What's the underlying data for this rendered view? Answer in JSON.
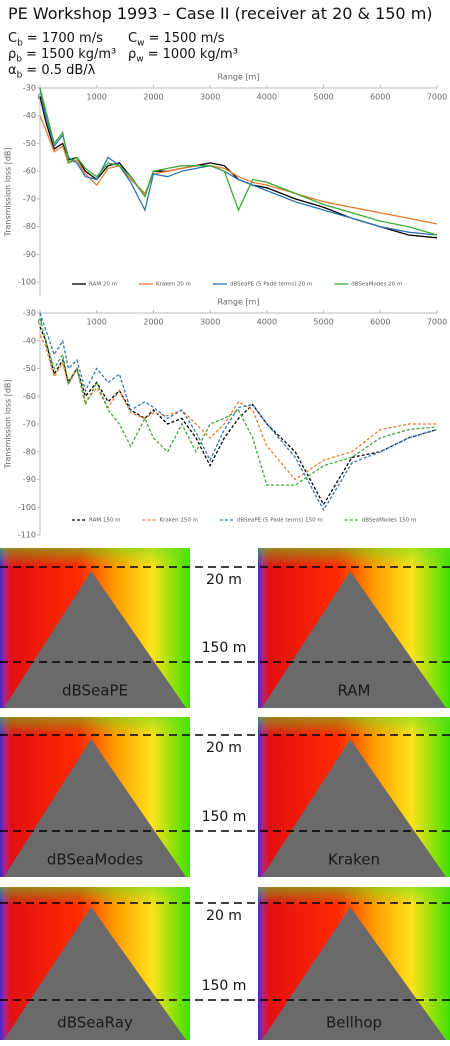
{
  "title": "PE Workshop 1993 – Case II (receiver at 20 & 150 m)",
  "params": [
    {
      "symbol": "C",
      "sub": "b",
      "text": "= 1700 m/s"
    },
    {
      "symbol": "C",
      "sub": "w",
      "text": "= 1500 m/s"
    },
    {
      "symbol": "ρ",
      "sub": "b",
      "text": "= 1500 kg/m³"
    },
    {
      "symbol": "ρ",
      "sub": "w",
      "text": "= 1000 kg/m³"
    },
    {
      "symbol": "α",
      "sub": "b",
      "text": "= 0.5 dB/λ"
    }
  ],
  "chart_data": [
    {
      "type": "line",
      "x_label": "Range [m]",
      "y_label": "Transmission loss [dB]",
      "x": [
        0,
        100,
        250,
        400,
        500,
        650,
        800,
        1000,
        1200,
        1400,
        1600,
        1850,
        2000,
        2250,
        2500,
        2750,
        3000,
        3250,
        3500,
        3750,
        4000,
        4500,
        5000,
        5500,
        6000,
        6500,
        7000
      ],
      "xlim": [
        0,
        7000
      ],
      "xticks": [
        0,
        1000,
        2000,
        3000,
        4000,
        5000,
        6000,
        7000
      ],
      "ylim": [
        -105,
        -30
      ],
      "yticks": [
        -30,
        -40,
        -50,
        -60,
        -70,
        -80,
        -90,
        -100
      ],
      "dashed": false,
      "legend": "bottom",
      "series": [
        {
          "name": "RAM 20 m",
          "color": "#000000",
          "values": [
            -33,
            -42,
            -52,
            -50,
            -56,
            -55,
            -60,
            -63,
            -58,
            -57,
            -62,
            -69,
            -60,
            -60,
            -59,
            -58,
            -57,
            -58,
            -63,
            -65,
            -66,
            -70,
            -73,
            -77,
            -80,
            -83,
            -84
          ]
        },
        {
          "name": "Kraken 20 m",
          "color": "#ed7d31",
          "values": [
            -40,
            -45,
            -53,
            -51,
            -57,
            -56,
            -61,
            -65,
            -59,
            -58,
            -63,
            -68,
            -61,
            -60,
            -59,
            -58,
            -58,
            -59,
            -62,
            -64,
            -65,
            -68,
            -71,
            -73,
            -75,
            -77,
            -79
          ]
        },
        {
          "name": "dBSeaPE (5 Padé terms) 20 m",
          "color": "#2e75b6",
          "values": [
            -30,
            -40,
            -51,
            -47,
            -55,
            -57,
            -62,
            -63,
            -55,
            -58,
            -64,
            -74,
            -61,
            -62,
            -60,
            -59,
            -58,
            -60,
            -63,
            -65,
            -67,
            -71,
            -74,
            -77,
            -80,
            -82,
            -83
          ]
        },
        {
          "name": "dBSeaModes 20 m",
          "color": "#3aaa35",
          "values": [
            -30,
            -38,
            -50,
            -46,
            -57,
            -55,
            -59,
            -62,
            -57,
            -58,
            -62,
            -69,
            -60,
            -59,
            -58,
            -58,
            -58,
            -60,
            -74,
            -63,
            -64,
            -68,
            -72,
            -75,
            -78,
            -80,
            -83
          ]
        }
      ]
    },
    {
      "type": "line",
      "x_label": "Range [m]",
      "y_label": "Transmission loss [dB]",
      "x": [
        0,
        100,
        250,
        400,
        500,
        650,
        800,
        1000,
        1200,
        1400,
        1600,
        1850,
        2000,
        2250,
        2500,
        2750,
        3000,
        3250,
        3500,
        3750,
        4000,
        4500,
        5000,
        5500,
        6000,
        6500,
        7000
      ],
      "xlim": [
        0,
        7000
      ],
      "xticks": [
        0,
        1000,
        2000,
        3000,
        4000,
        5000,
        6000,
        7000
      ],
      "ylim": [
        -110,
        -30
      ],
      "yticks": [
        -30,
        -40,
        -50,
        -60,
        -70,
        -80,
        -90,
        -100,
        -110
      ],
      "dashed": true,
      "legend": "bottom",
      "series": [
        {
          "name": "RAM 150 m",
          "color": "#000000",
          "values": [
            -35,
            -40,
            -52,
            -47,
            -55,
            -50,
            -60,
            -55,
            -62,
            -58,
            -65,
            -68,
            -65,
            -70,
            -68,
            -75,
            -85,
            -75,
            -68,
            -63,
            -70,
            -80,
            -99,
            -82,
            -80,
            -75,
            -72
          ]
        },
        {
          "name": "Kraken 150 m",
          "color": "#ed7d31",
          "values": [
            -38,
            -42,
            -53,
            -48,
            -56,
            -50,
            -62,
            -57,
            -64,
            -58,
            -66,
            -68,
            -66,
            -67,
            -65,
            -70,
            -75,
            -70,
            -62,
            -65,
            -78,
            -90,
            -83,
            -80,
            -72,
            -70,
            -70
          ]
        },
        {
          "name": "dBSeaPE (5 Padé terms) 150 m",
          "color": "#2e75b6",
          "values": [
            -30,
            -36,
            -45,
            -40,
            -50,
            -47,
            -58,
            -50,
            -55,
            -52,
            -65,
            -62,
            -64,
            -68,
            -65,
            -73,
            -83,
            -72,
            -64,
            -63,
            -70,
            -82,
            -101,
            -84,
            -80,
            -75,
            -72
          ]
        },
        {
          "name": "dBSeaModes 150 m",
          "color": "#3aaa35",
          "values": [
            -32,
            -40,
            -50,
            -45,
            -55,
            -50,
            -63,
            -55,
            -65,
            -70,
            -78,
            -68,
            -75,
            -80,
            -70,
            -80,
            -70,
            -68,
            -65,
            -75,
            -92,
            -92,
            -85,
            -82,
            -75,
            -72,
            -71
          ]
        }
      ]
    }
  ],
  "panels": [
    {
      "label": "dBSeaPE"
    },
    {
      "label": "RAM"
    },
    {
      "label": "dBSeaModes"
    },
    {
      "label": "Kraken"
    },
    {
      "label": "dBSeaRay"
    },
    {
      "label": "Bellhop"
    }
  ],
  "depth_labels": [
    "20 m",
    "150 m"
  ]
}
